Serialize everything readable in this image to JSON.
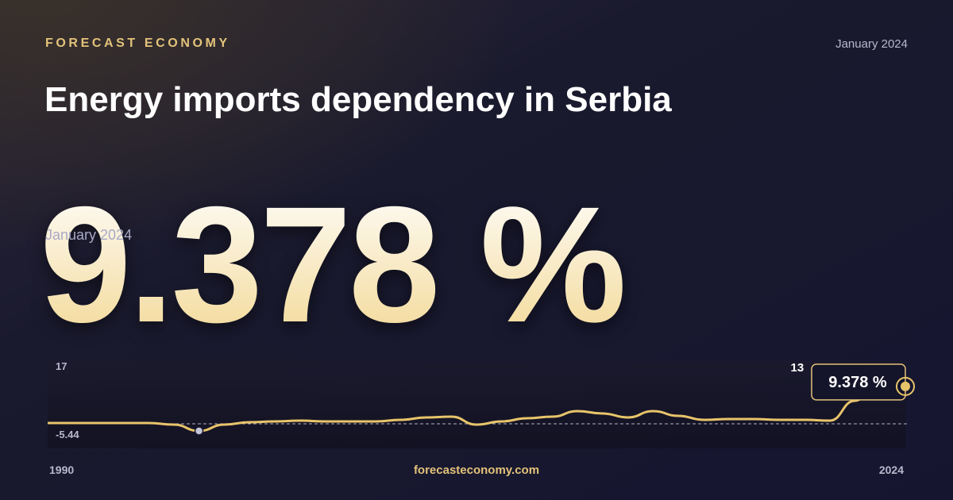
{
  "brand": "FORECAST ECONOMY",
  "date": "January 2024",
  "title": "Energy imports dependency in Serbia",
  "footer": "forecasteconomy.com",
  "chart_data": {
    "type": "line",
    "x": [
      1990,
      1991,
      1992,
      1993,
      1994,
      1995,
      1996,
      1997,
      1998,
      1999,
      2000,
      2001,
      2002,
      2003,
      2004,
      2005,
      2006,
      2007,
      2008,
      2009,
      2010,
      2011,
      2012,
      2013,
      2014,
      2015,
      2016,
      2017,
      2018,
      2019,
      2020,
      2021,
      2022,
      2023,
      2024
    ],
    "series": [
      {
        "color": "#e8c46a",
        "values": [
          -2.8,
          -2.8,
          -2.8,
          -2.8,
          -2.8,
          -3.33,
          -5.44,
          -3.33,
          -2.54,
          -2.27,
          -2.01,
          -2.27,
          -2.27,
          -2.27,
          -1.74,
          -0.95,
          -0.69,
          -3.33,
          -2.27,
          -1.22,
          -0.69,
          1.16,
          0.37,
          -0.95,
          1.16,
          -0.42,
          -1.74,
          -1.48,
          -1.48,
          -1.74,
          -1.74,
          -2.01,
          4.59,
          13,
          9.378
        ],
        "value_labels": [
          null,
          null,
          null,
          null,
          null,
          null,
          null,
          null,
          null,
          null,
          null,
          null,
          null,
          null,
          null,
          null,
          null,
          null,
          null,
          null,
          null,
          null,
          null,
          null,
          null,
          null,
          null,
          null,
          null,
          null,
          null,
          null,
          null,
          "13",
          "9.378 %"
        ]
      }
    ],
    "xlim": [
      1990,
      2024
    ],
    "xticks": [
      1990,
      2024
    ],
    "ylim": [
      -5.44,
      17
    ],
    "yticks": [
      -5.44,
      17
    ]
  }
}
